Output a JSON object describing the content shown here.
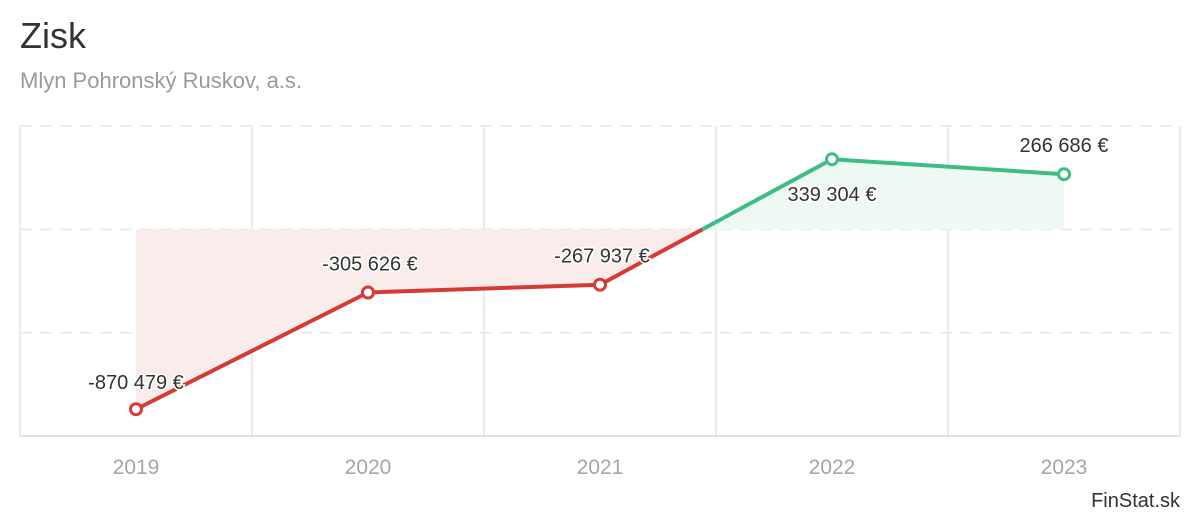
{
  "title": "Zisk",
  "subtitle": "Mlyn Pohronský Ruskov, a.s.",
  "credit": "FinStat.sk",
  "colors": {
    "negative": "#d63a35",
    "negative_fill": "#f9ecea",
    "positive": "#3dbd84",
    "positive_fill": "#eef9f3",
    "grid": "#e6e6e6",
    "axis_text": "#a6a6a6",
    "label_text": "#333333"
  },
  "chart_data": {
    "type": "line",
    "title": "Zisk",
    "subtitle": "Mlyn Pohronský Ruskov, a.s.",
    "categories": [
      "2019",
      "2020",
      "2021",
      "2022",
      "2023"
    ],
    "values": [
      -870479,
      -305626,
      -267937,
      339304,
      266686
    ],
    "data_labels": [
      "-870 479 €",
      "-305 626 €",
      "-267 937 €",
      "339 304 €",
      "266 686 €"
    ],
    "ylim": [
      -1000000,
      500000
    ],
    "grid": true,
    "legend": "none"
  }
}
